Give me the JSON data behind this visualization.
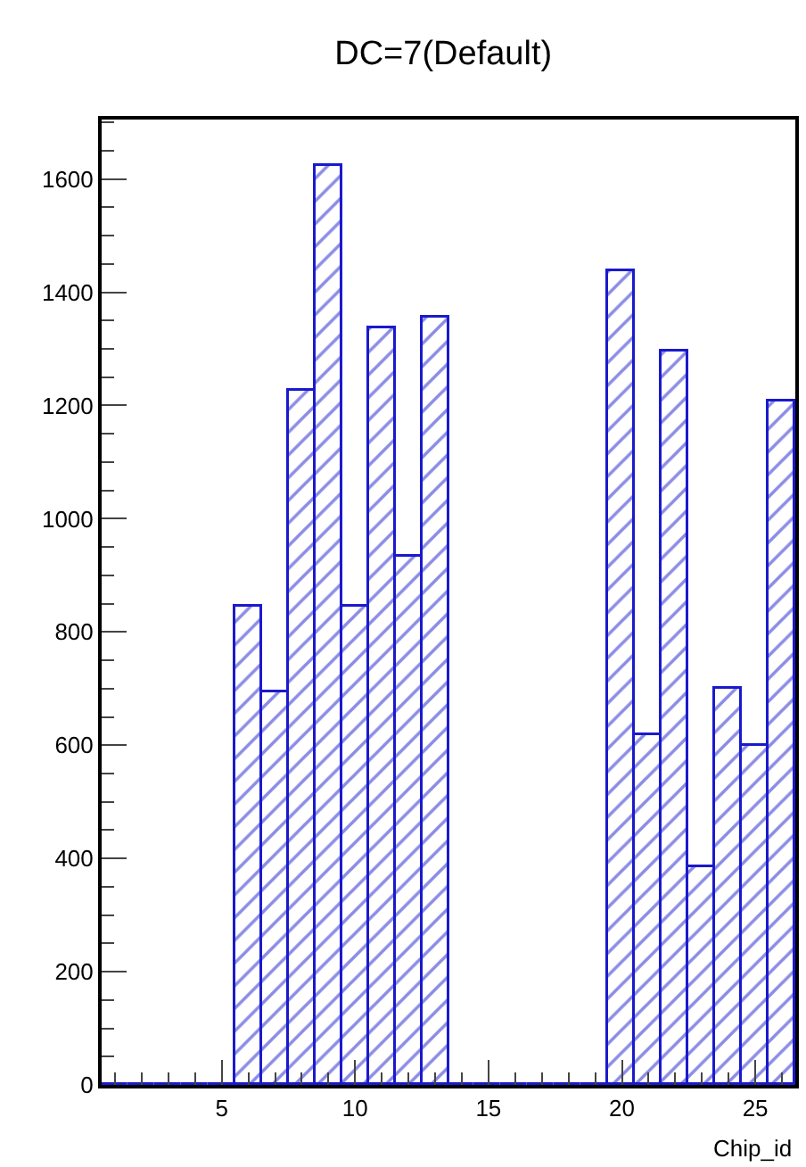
{
  "chart_data": {
    "type": "histogram",
    "title": "DC=7(Default)",
    "xlabel": "Chip_id",
    "bins": [
      0.5,
      1.5,
      2.5,
      3.5,
      4.5,
      5.5,
      6.5,
      7.5,
      8.5,
      9.5,
      10.5,
      11.5,
      12.5,
      13.5,
      14.5,
      15.5,
      16.5,
      17.5,
      18.5,
      19.5,
      20.5,
      21.5,
      22.5,
      23.5,
      24.5,
      25.5,
      26.5
    ],
    "values": [
      0,
      0,
      0,
      0,
      0,
      845,
      694,
      1225,
      1622,
      845,
      1336,
      933,
      1354,
      0,
      0,
      0,
      0,
      0,
      0,
      1436,
      618,
      1295,
      385,
      700,
      600,
      1208
    ],
    "color": "#1a1acc",
    "xlim": [
      0.5,
      26.5
    ],
    "xticks": [
      5,
      10,
      15,
      20,
      25
    ],
    "ylim": [
      0,
      1705
    ],
    "yticks": [
      0,
      200,
      400,
      600,
      800,
      1000,
      1200,
      1400,
      1600
    ],
    "grid": false,
    "legend": false
  }
}
